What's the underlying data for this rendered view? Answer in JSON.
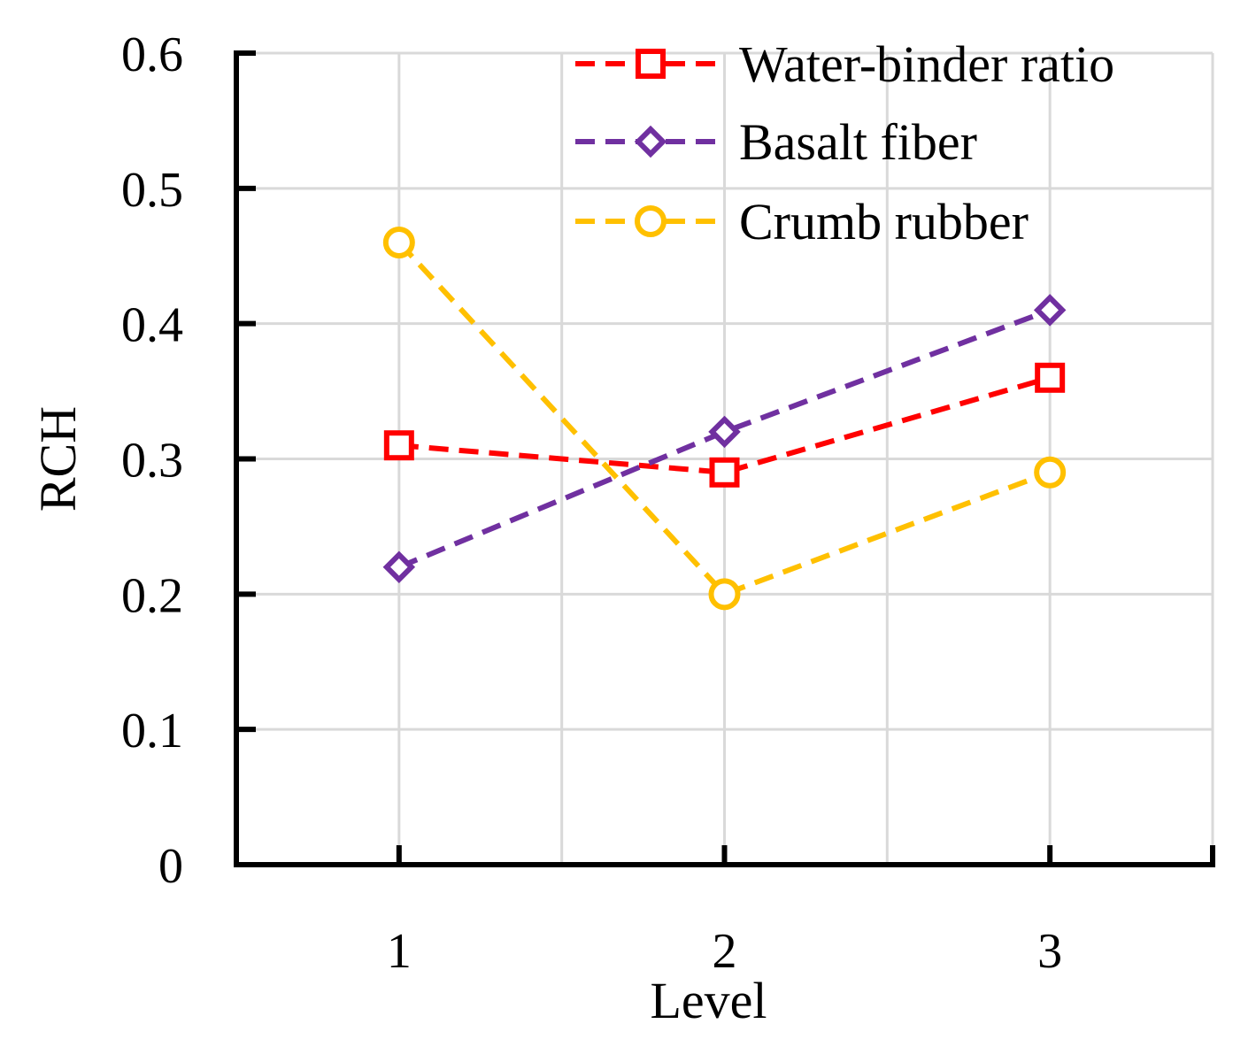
{
  "chart_data": {
    "type": "line",
    "title": "",
    "xlabel": "Level",
    "ylabel": "RCH",
    "x": [
      1,
      2,
      3
    ],
    "xlim": [
      0.5,
      3.5
    ],
    "ylim": [
      0,
      0.6
    ],
    "yticks": [
      0,
      0.1,
      0.2,
      0.3,
      0.4,
      0.5,
      0.6
    ],
    "ytick_labels": [
      "0",
      "0.1",
      "0.2",
      "0.3",
      "0.4",
      "0.5",
      "0.6"
    ],
    "xticks": [
      1,
      2,
      3
    ],
    "xtick_labels": [
      "1",
      "2",
      "3"
    ],
    "grid": true,
    "legend_position": "top-right",
    "series": [
      {
        "name": "Water-binder ratio",
        "values": [
          0.31,
          0.29,
          0.36
        ],
        "color": "#ff0000",
        "marker": "square",
        "line_style": "dashed"
      },
      {
        "name": "Basalt fiber",
        "values": [
          0.22,
          0.32,
          0.41
        ],
        "color": "#7030a0",
        "marker": "diamond",
        "line_style": "dashed"
      },
      {
        "name": "Crumb rubber",
        "values": [
          0.46,
          0.2,
          0.29
        ],
        "color": "#ffc000",
        "marker": "circle",
        "line_style": "dashed"
      }
    ]
  }
}
